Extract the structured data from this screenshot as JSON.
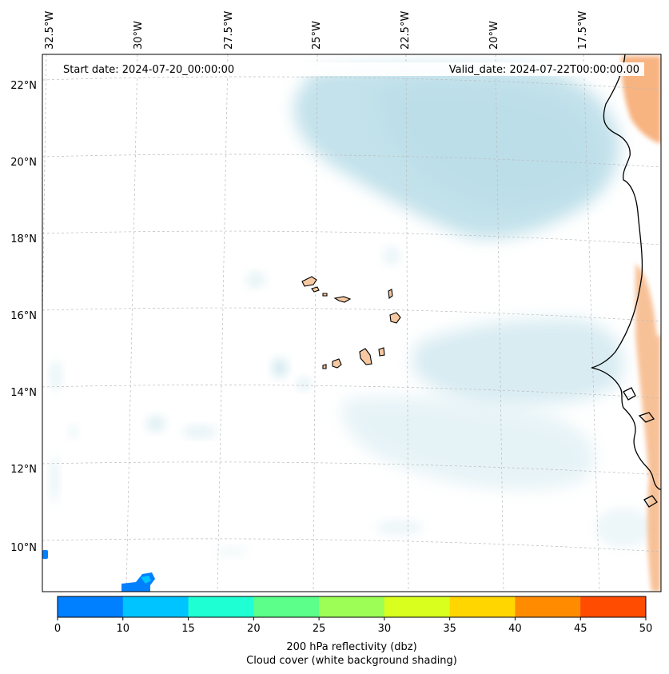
{
  "map": {
    "start_date": "Start date: 2024-07-20_00:00:00",
    "valid_date": "Valid_date: 2024-07-22T00:00:00.00",
    "lon_labels": [
      "32.5°W",
      "30°W",
      "27.5°W",
      "25°W",
      "22.5°W",
      "20°W",
      "17.5°W"
    ],
    "lat_labels": [
      "22°N",
      "20°N",
      "18°N",
      "16°N",
      "14°N",
      "12°N",
      "10°N"
    ],
    "colors": {
      "land": "#f6c9a2",
      "coast": "#000000",
      "cloud": "#b9dde8",
      "gridline": "#bbbbbb"
    }
  },
  "colorbar": {
    "ticks": [
      "0",
      "10",
      "15",
      "20",
      "25",
      "30",
      "35",
      "40",
      "45",
      "50"
    ],
    "colors": [
      "#0080ff",
      "#00c4ff",
      "#1effd4",
      "#5cff8a",
      "#9dff56",
      "#d8ff1e",
      "#ffd600",
      "#ff8c00",
      "#ff4c00"
    ],
    "label_line1": "200 hPa reflectivity (dbz)",
    "label_line2": "Cloud cover (white background shading)"
  }
}
